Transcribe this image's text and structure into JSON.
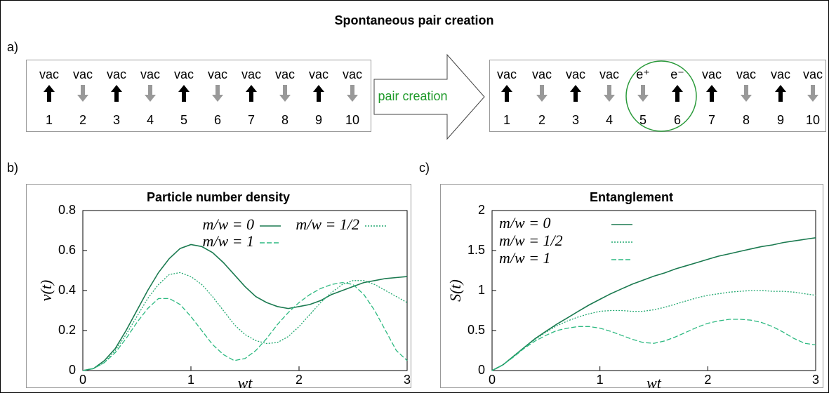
{
  "title": "Spontaneous pair creation",
  "panel_labels": [
    "a)",
    "b)",
    "c)"
  ],
  "diagram": {
    "before": {
      "sites": [
        {
          "label": "vac",
          "spin": "up",
          "index": 1
        },
        {
          "label": "vac",
          "spin": "down",
          "index": 2
        },
        {
          "label": "vac",
          "spin": "up",
          "index": 3
        },
        {
          "label": "vac",
          "spin": "down",
          "index": 4
        },
        {
          "label": "vac",
          "spin": "up",
          "index": 5
        },
        {
          "label": "vac",
          "spin": "down",
          "index": 6
        },
        {
          "label": "vac",
          "spin": "up",
          "index": 7
        },
        {
          "label": "vac",
          "spin": "down",
          "index": 8
        },
        {
          "label": "vac",
          "spin": "up",
          "index": 9
        },
        {
          "label": "vac",
          "spin": "down",
          "index": 10
        }
      ]
    },
    "arrow_label": "pair creation",
    "after": {
      "sites": [
        {
          "label": "vac",
          "spin": "up",
          "index": 1
        },
        {
          "label": "vac",
          "spin": "down",
          "index": 2
        },
        {
          "label": "vac",
          "spin": "up",
          "index": 3
        },
        {
          "label": "vac",
          "spin": "down",
          "index": 4
        },
        {
          "label": "e⁺",
          "spin": "down",
          "index": 5
        },
        {
          "label": "e⁻",
          "spin": "up",
          "index": 6
        },
        {
          "label": "vac",
          "spin": "up",
          "index": 7
        },
        {
          "label": "vac",
          "spin": "down",
          "index": 8
        },
        {
          "label": "vac",
          "spin": "up",
          "index": 9
        },
        {
          "label": "vac",
          "spin": "down",
          "index": 10
        }
      ]
    }
  },
  "chart_data": [
    {
      "type": "line",
      "title": "Particle number density",
      "x_label": "wt",
      "y_label": "ν(t)",
      "xlim": [
        0,
        3
      ],
      "ylim": [
        0,
        0.8
      ],
      "xticks": [
        0,
        1,
        2,
        3
      ],
      "yticks": [
        0,
        0.2,
        0.4,
        0.6,
        0.8
      ],
      "legend": "upper right",
      "x": [
        0,
        0.1,
        0.2,
        0.3,
        0.4,
        0.5,
        0.6,
        0.7,
        0.8,
        0.9,
        1,
        1.1,
        1.2,
        1.3,
        1.4,
        1.5,
        1.6,
        1.7,
        1.8,
        1.9,
        2,
        2.1,
        2.2,
        2.3,
        2.4,
        2.5,
        2.6,
        2.7,
        2.8,
        2.9,
        3
      ],
      "series": [
        {
          "name": "m/w = 0",
          "color": "#1b7a50",
          "dash": "solid",
          "values": [
            0,
            0.01,
            0.05,
            0.11,
            0.2,
            0.3,
            0.4,
            0.49,
            0.56,
            0.61,
            0.63,
            0.62,
            0.59,
            0.54,
            0.48,
            0.42,
            0.37,
            0.34,
            0.32,
            0.31,
            0.32,
            0.33,
            0.35,
            0.38,
            0.4,
            0.42,
            0.44,
            0.45,
            0.46,
            0.465,
            0.47
          ]
        },
        {
          "name": "m/w = 1/2",
          "color": "#22a870",
          "dash": "dotted",
          "values": [
            0,
            0.01,
            0.04,
            0.1,
            0.18,
            0.27,
            0.36,
            0.43,
            0.48,
            0.49,
            0.47,
            0.43,
            0.37,
            0.3,
            0.23,
            0.18,
            0.15,
            0.135,
            0.14,
            0.17,
            0.22,
            0.28,
            0.34,
            0.39,
            0.43,
            0.45,
            0.45,
            0.43,
            0.4,
            0.37,
            0.34
          ]
        },
        {
          "name": "m/w = 1",
          "color": "#2cb980",
          "dash": "dashed",
          "values": [
            0,
            0.01,
            0.04,
            0.09,
            0.16,
            0.24,
            0.31,
            0.36,
            0.36,
            0.33,
            0.27,
            0.2,
            0.13,
            0.08,
            0.05,
            0.06,
            0.1,
            0.16,
            0.23,
            0.29,
            0.34,
            0.38,
            0.41,
            0.43,
            0.44,
            0.43,
            0.38,
            0.3,
            0.2,
            0.1,
            0.05
          ]
        }
      ]
    },
    {
      "type": "line",
      "title": "Entanglement",
      "x_label": "wt",
      "y_label": "S(t)",
      "xlim": [
        0,
        3
      ],
      "ylim": [
        0,
        2
      ],
      "xticks": [
        0,
        1,
        2,
        3
      ],
      "yticks": [
        0,
        0.5,
        1,
        1.5,
        2
      ],
      "legend": "upper left",
      "x": [
        0,
        0.1,
        0.2,
        0.3,
        0.4,
        0.5,
        0.6,
        0.7,
        0.8,
        0.9,
        1,
        1.1,
        1.2,
        1.3,
        1.4,
        1.5,
        1.6,
        1.7,
        1.8,
        1.9,
        2,
        2.1,
        2.2,
        2.3,
        2.4,
        2.5,
        2.6,
        2.7,
        2.8,
        2.9,
        3
      ],
      "series": [
        {
          "name": "m/w = 0",
          "color": "#1b7a50",
          "dash": "solid",
          "values": [
            0,
            0.07,
            0.18,
            0.29,
            0.4,
            0.49,
            0.58,
            0.66,
            0.74,
            0.82,
            0.89,
            0.96,
            1.02,
            1.08,
            1.13,
            1.18,
            1.22,
            1.27,
            1.31,
            1.35,
            1.39,
            1.43,
            1.46,
            1.49,
            1.52,
            1.55,
            1.57,
            1.6,
            1.62,
            1.64,
            1.66
          ]
        },
        {
          "name": "m/w = 1/2",
          "color": "#22a870",
          "dash": "dotted",
          "values": [
            0,
            0.07,
            0.18,
            0.29,
            0.39,
            0.48,
            0.56,
            0.62,
            0.67,
            0.71,
            0.74,
            0.75,
            0.75,
            0.74,
            0.74,
            0.76,
            0.79,
            0.83,
            0.87,
            0.91,
            0.94,
            0.96,
            0.98,
            0.99,
            1.0,
            1.0,
            0.99,
            0.99,
            0.98,
            0.96,
            0.94
          ]
        },
        {
          "name": "m/w = 1",
          "color": "#2cb980",
          "dash": "dashed",
          "values": [
            0,
            0.07,
            0.17,
            0.28,
            0.37,
            0.44,
            0.5,
            0.53,
            0.55,
            0.55,
            0.53,
            0.49,
            0.44,
            0.39,
            0.35,
            0.34,
            0.37,
            0.42,
            0.48,
            0.54,
            0.59,
            0.62,
            0.64,
            0.64,
            0.63,
            0.6,
            0.55,
            0.48,
            0.4,
            0.34,
            0.32
          ]
        }
      ]
    }
  ]
}
